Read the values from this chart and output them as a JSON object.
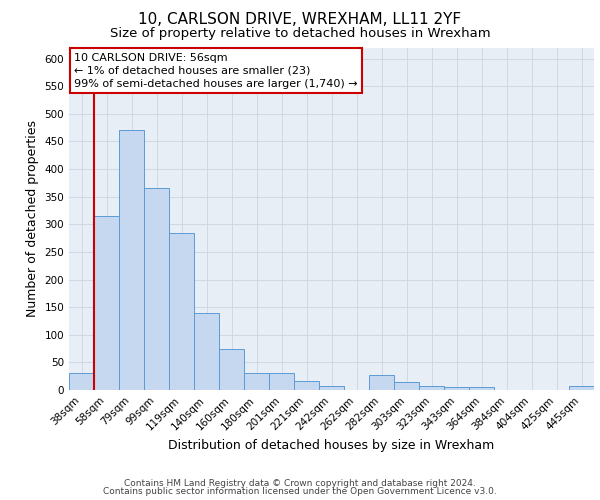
{
  "title1": "10, CARLSON DRIVE, WREXHAM, LL11 2YF",
  "title2": "Size of property relative to detached houses in Wrexham",
  "xlabel": "Distribution of detached houses by size in Wrexham",
  "ylabel": "Number of detached properties",
  "categories": [
    "38sqm",
    "58sqm",
    "79sqm",
    "99sqm",
    "119sqm",
    "140sqm",
    "160sqm",
    "180sqm",
    "201sqm",
    "221sqm",
    "242sqm",
    "262sqm",
    "282sqm",
    "303sqm",
    "323sqm",
    "343sqm",
    "364sqm",
    "384sqm",
    "404sqm",
    "425sqm",
    "445sqm"
  ],
  "values": [
    30,
    315,
    470,
    365,
    285,
    140,
    75,
    30,
    30,
    17,
    7,
    0,
    27,
    15,
    7,
    5,
    5,
    0,
    0,
    0,
    7
  ],
  "bar_color": "#c5d8f0",
  "bar_edge_color": "#5b9bd5",
  "red_line_index": 1,
  "annotation_lines": [
    "10 CARLSON DRIVE: 56sqm",
    "← 1% of detached houses are smaller (23)",
    "99% of semi-detached houses are larger (1,740) →"
  ],
  "annotation_box_color": "#ffffff",
  "annotation_box_edge": "#cc0000",
  "red_line_color": "#cc0000",
  "grid_color": "#ccd5e0",
  "background_color": "#e8eef5",
  "ylim": [
    0,
    620
  ],
  "yticks": [
    0,
    50,
    100,
    150,
    200,
    250,
    300,
    350,
    400,
    450,
    500,
    550,
    600
  ],
  "footer_line1": "Contains HM Land Registry data © Crown copyright and database right 2024.",
  "footer_line2": "Contains public sector information licensed under the Open Government Licence v3.0.",
  "title1_fontsize": 11,
  "title2_fontsize": 9.5,
  "xlabel_fontsize": 9,
  "ylabel_fontsize": 9,
  "tick_fontsize": 7.5,
  "annotation_fontsize": 8,
  "footer_fontsize": 6.5
}
